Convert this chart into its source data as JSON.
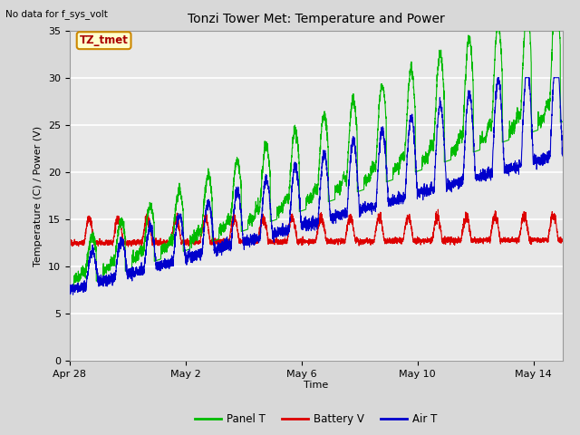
{
  "title": "Tonzi Tower Met: Temperature and Power",
  "top_left_text": "No data for f_sys_volt",
  "ylabel": "Temperature (C) / Power (V)",
  "xlabel": "Time",
  "ylim": [
    0,
    35
  ],
  "yticks": [
    0,
    5,
    10,
    15,
    20,
    25,
    30,
    35
  ],
  "x_tick_labels": [
    "Apr 28",
    "May 2",
    "May 6",
    "May 10",
    "May 14"
  ],
  "x_tick_positions": [
    0,
    4,
    8,
    12,
    16
  ],
  "num_days": 17,
  "plot_bg_color": "#e8e8e8",
  "grid_color": "#ffffff",
  "fig_bg_color": "#d8d8d8",
  "legend_entries": [
    "Panel T",
    "Battery V",
    "Air T"
  ],
  "legend_colors": [
    "#00bb00",
    "#dd0000",
    "#0000cc"
  ],
  "panel_color": "#00bb00",
  "battery_color": "#dd0000",
  "air_color": "#0000cc",
  "annotation_text": "TZ_tmet",
  "annotation_bg": "#ffffcc",
  "annotation_border": "#cc8800"
}
